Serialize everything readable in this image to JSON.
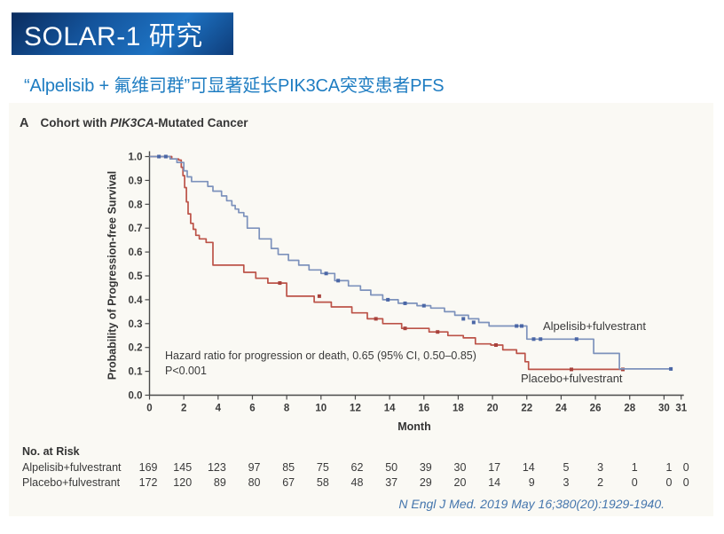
{
  "slide": {
    "header_title": "SOLAR-1 研究",
    "subtitle": "“Alpelisib + 氟维司群”可显著延长PIK3CA突变患者PFS",
    "citation": "N Engl J Med. 2019 May 16;380(20):1929-1940."
  },
  "figure": {
    "panel_letter": "A",
    "panel_title_prefix": "Cohort with ",
    "panel_title_italic": "PIK3CA",
    "panel_title_suffix": "-Mutated Cancer",
    "ylabel": "Probability of Progression-free Survival",
    "xlabel": "Month",
    "annotation_line1": "Hazard ratio for progression or death, 0.65 (95% CI, 0.50–0.85)",
    "annotation_line2": "P<0.001",
    "series_labels": {
      "alpelisib": "Alpelisib+fulvestrant",
      "placebo": "Placebo+fulvestrant"
    }
  },
  "colors": {
    "header_blue": "#1d72c2",
    "subtitle_blue": "#1f7dc2",
    "axis": "#4a4a4a",
    "alpelisib_line": "#7d92bc",
    "alpelisib_censor": "#4b67a6",
    "placebo_line": "#bc5348",
    "placebo_censor": "#a8423c",
    "citation_blue": "#4576ad"
  },
  "chart_data": {
    "type": "line",
    "subtype": "kaplan-meier-step",
    "title": "Cohort with PIK3CA-Mutated Cancer",
    "xlabel": "Month",
    "ylabel": "Probability of Progression-free Survival",
    "xlim": [
      0,
      31
    ],
    "ylim": [
      0.0,
      1.0
    ],
    "grid": false,
    "xticks": [
      0,
      2,
      4,
      6,
      8,
      10,
      12,
      14,
      16,
      18,
      20,
      22,
      24,
      26,
      28,
      30,
      31
    ],
    "yticks": [
      "0.0",
      "0.1",
      "0.2",
      "0.3",
      "0.4",
      "0.5",
      "0.6",
      "0.7",
      "0.8",
      "0.9",
      "1.0"
    ],
    "annotation": "Hazard ratio for progression or death, 0.65 (95% CI, 0.50–0.85); P<0.001",
    "series": [
      {
        "name": "Placebo+fulvestrant",
        "color": "#bc5348",
        "censor_color": "#a8423c",
        "steps": [
          [
            0,
            1.0
          ],
          [
            1.3,
            0.99
          ],
          [
            1.7,
            0.985
          ],
          [
            1.85,
            0.955
          ],
          [
            1.95,
            0.92
          ],
          [
            2.05,
            0.87
          ],
          [
            2.15,
            0.81
          ],
          [
            2.25,
            0.76
          ],
          [
            2.4,
            0.72
          ],
          [
            2.55,
            0.695
          ],
          [
            2.7,
            0.67
          ],
          [
            2.9,
            0.655
          ],
          [
            3.3,
            0.64
          ],
          [
            3.7,
            0.545
          ],
          [
            5.5,
            0.515
          ],
          [
            6.2,
            0.49
          ],
          [
            6.9,
            0.47
          ],
          [
            8.0,
            0.415
          ],
          [
            9.6,
            0.39
          ],
          [
            10.6,
            0.37
          ],
          [
            11.8,
            0.345
          ],
          [
            12.7,
            0.32
          ],
          [
            13.6,
            0.3
          ],
          [
            14.7,
            0.28
          ],
          [
            16.3,
            0.265
          ],
          [
            17.4,
            0.25
          ],
          [
            18.3,
            0.24
          ],
          [
            19.0,
            0.215
          ],
          [
            19.9,
            0.21
          ],
          [
            20.6,
            0.19
          ],
          [
            21.4,
            0.175
          ],
          [
            21.9,
            0.14
          ],
          [
            22.1,
            0.108
          ],
          [
            27.6,
            0.108
          ]
        ],
        "censors": [
          [
            7.6,
            0.47
          ],
          [
            9.9,
            0.415
          ],
          [
            13.2,
            0.32
          ],
          [
            14.9,
            0.28
          ],
          [
            16.8,
            0.265
          ],
          [
            20.2,
            0.21
          ],
          [
            24.6,
            0.108
          ],
          [
            27.6,
            0.108
          ]
        ]
      },
      {
        "name": "Alpelisib+fulvestrant",
        "color": "#7d92bc",
        "censor_color": "#4b67a6",
        "steps": [
          [
            0,
            1.0
          ],
          [
            1.2,
            0.99
          ],
          [
            1.6,
            0.975
          ],
          [
            2.0,
            0.94
          ],
          [
            2.2,
            0.915
          ],
          [
            2.45,
            0.895
          ],
          [
            3.4,
            0.875
          ],
          [
            3.7,
            0.855
          ],
          [
            4.2,
            0.835
          ],
          [
            4.5,
            0.815
          ],
          [
            4.8,
            0.795
          ],
          [
            5.0,
            0.78
          ],
          [
            5.2,
            0.765
          ],
          [
            5.5,
            0.75
          ],
          [
            5.7,
            0.7
          ],
          [
            6.4,
            0.655
          ],
          [
            7.1,
            0.615
          ],
          [
            7.5,
            0.59
          ],
          [
            8.1,
            0.565
          ],
          [
            8.7,
            0.545
          ],
          [
            9.3,
            0.525
          ],
          [
            10.0,
            0.51
          ],
          [
            10.8,
            0.48
          ],
          [
            11.6,
            0.458
          ],
          [
            12.3,
            0.44
          ],
          [
            12.9,
            0.42
          ],
          [
            13.6,
            0.4
          ],
          [
            14.5,
            0.385
          ],
          [
            15.6,
            0.375
          ],
          [
            16.4,
            0.365
          ],
          [
            17.2,
            0.35
          ],
          [
            17.8,
            0.335
          ],
          [
            18.6,
            0.32
          ],
          [
            19.2,
            0.305
          ],
          [
            19.8,
            0.29
          ],
          [
            22.0,
            0.235
          ],
          [
            25.9,
            0.175
          ],
          [
            27.4,
            0.11
          ],
          [
            30.4,
            0.11
          ]
        ],
        "censors": [
          [
            0.55,
            1.0
          ],
          [
            0.95,
            1.0
          ],
          [
            10.3,
            0.51
          ],
          [
            11.0,
            0.48
          ],
          [
            13.9,
            0.4
          ],
          [
            14.9,
            0.385
          ],
          [
            16.0,
            0.375
          ],
          [
            18.3,
            0.32
          ],
          [
            18.9,
            0.305
          ],
          [
            21.4,
            0.29
          ],
          [
            21.7,
            0.29
          ],
          [
            22.4,
            0.235
          ],
          [
            22.8,
            0.235
          ],
          [
            24.9,
            0.235
          ],
          [
            30.4,
            0.11
          ]
        ]
      }
    ]
  },
  "risk_table": {
    "header": "No. at Risk",
    "months": [
      0,
      2,
      4,
      6,
      8,
      10,
      12,
      14,
      16,
      18,
      20,
      22,
      24,
      26,
      28,
      30,
      31
    ],
    "rows": [
      {
        "label": "Alpelisib+fulvestrant",
        "values": [
          169,
          145,
          123,
          97,
          85,
          75,
          62,
          50,
          39,
          30,
          17,
          14,
          5,
          3,
          1,
          1,
          0
        ]
      },
      {
        "label": "Placebo+fulvestrant",
        "values": [
          172,
          120,
          89,
          80,
          67,
          58,
          48,
          37,
          29,
          20,
          14,
          9,
          3,
          2,
          0,
          0,
          0
        ]
      }
    ]
  }
}
